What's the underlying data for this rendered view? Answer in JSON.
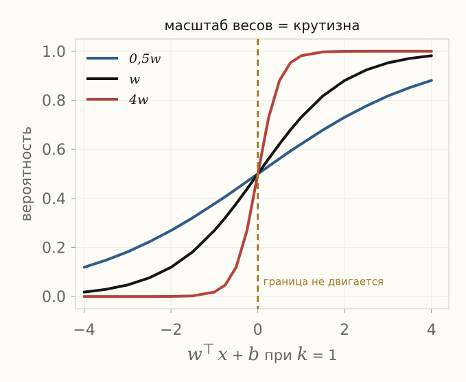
{
  "chart_data": {
    "type": "line",
    "title": "масштаб весов = крутизна",
    "xlabel": {
      "w": "w",
      "top": "⊤",
      "x": "x",
      "plus": "+",
      "b": "b",
      "pri": "при",
      "k": "k",
      "eq": "=",
      "one": "1"
    },
    "ylabel": "вероятность",
    "xlim": [
      -4.2,
      4.4
    ],
    "ylim": [
      -0.05,
      1.05
    ],
    "xticks": [
      -4,
      -2,
      0,
      2,
      4
    ],
    "xtick_labels": [
      "−4",
      "−2",
      "0",
      "2",
      "4"
    ],
    "yticks": [
      0.0,
      0.2,
      0.4,
      0.6,
      0.8,
      1.0
    ],
    "ytick_labels": [
      "0.0",
      "0.2",
      "0.4",
      "0.6",
      "0.8",
      "1.0"
    ],
    "grid": true,
    "legend_position": "top-left",
    "x": [
      -4,
      -3.5,
      -3,
      -2.5,
      -2,
      -1.5,
      -1,
      -0.75,
      -0.5,
      -0.25,
      0,
      0.25,
      0.5,
      0.75,
      1,
      1.5,
      2,
      2.5,
      3,
      3.5,
      4
    ],
    "series": [
      {
        "name": "0,5w",
        "color": "#2f5d8a",
        "values": [
          0.119,
          0.148,
          0.182,
          0.223,
          0.269,
          0.321,
          0.378,
          0.407,
          0.438,
          0.469,
          0.5,
          0.531,
          0.562,
          0.593,
          0.622,
          0.679,
          0.731,
          0.777,
          0.818,
          0.852,
          0.881
        ]
      },
      {
        "name": "w",
        "color": "#151515",
        "values": [
          0.018,
          0.029,
          0.047,
          0.076,
          0.119,
          0.182,
          0.269,
          0.321,
          0.378,
          0.438,
          0.5,
          0.562,
          0.622,
          0.679,
          0.731,
          0.818,
          0.881,
          0.924,
          0.953,
          0.971,
          0.982
        ]
      },
      {
        "name": "4w",
        "color": "#b5453c",
        "values": [
          0.0,
          0.0,
          0.0,
          0.0,
          0.0003,
          0.0025,
          0.018,
          0.047,
          0.119,
          0.269,
          0.5,
          0.731,
          0.881,
          0.953,
          0.982,
          0.9975,
          0.9997,
          1.0,
          1.0,
          1.0,
          1.0
        ]
      }
    ],
    "boundary": {
      "x": 0,
      "color": "#a07a2a",
      "label": "граница не двигается"
    }
  }
}
